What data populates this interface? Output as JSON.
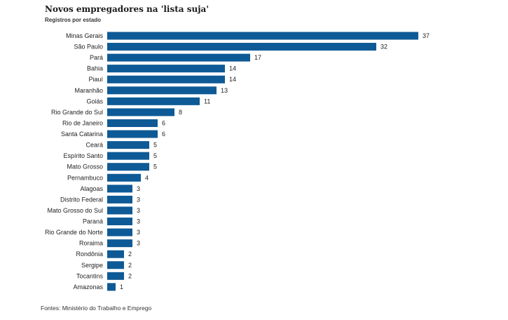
{
  "chart_data": {
    "type": "bar",
    "orientation": "horizontal",
    "title": "Novos empregadores na 'lista suja'",
    "subtitle": "Registros por estado",
    "source": "Fontes: Ministério do Trabalho e Emprego",
    "categories": [
      "Minas Gerais",
      "São Paulo",
      "Pará",
      "Bahia",
      "Piauí",
      "Maranhão",
      "Goiás",
      "Rio Grande do Sul",
      "Rio de Janeiro",
      "Santa Catarina",
      "Ceará",
      "Espírito Santo",
      "Mato Grosso",
      "Pernambuco",
      "Alagoas",
      "Distrito Federal",
      "Mato Grosso do Sul",
      "Paraná",
      "Rio Grande do Norte",
      "Roraima",
      "Rondônia",
      "Sergipe",
      "Tocantins",
      "Amazonas"
    ],
    "values": [
      37,
      32,
      17,
      14,
      14,
      13,
      11,
      8,
      6,
      6,
      5,
      5,
      5,
      4,
      3,
      3,
      3,
      3,
      3,
      3,
      2,
      2,
      2,
      1
    ],
    "xlim": [
      0,
      37
    ],
    "grid": false,
    "legend": "none",
    "bar_color": "#0e5a96"
  }
}
